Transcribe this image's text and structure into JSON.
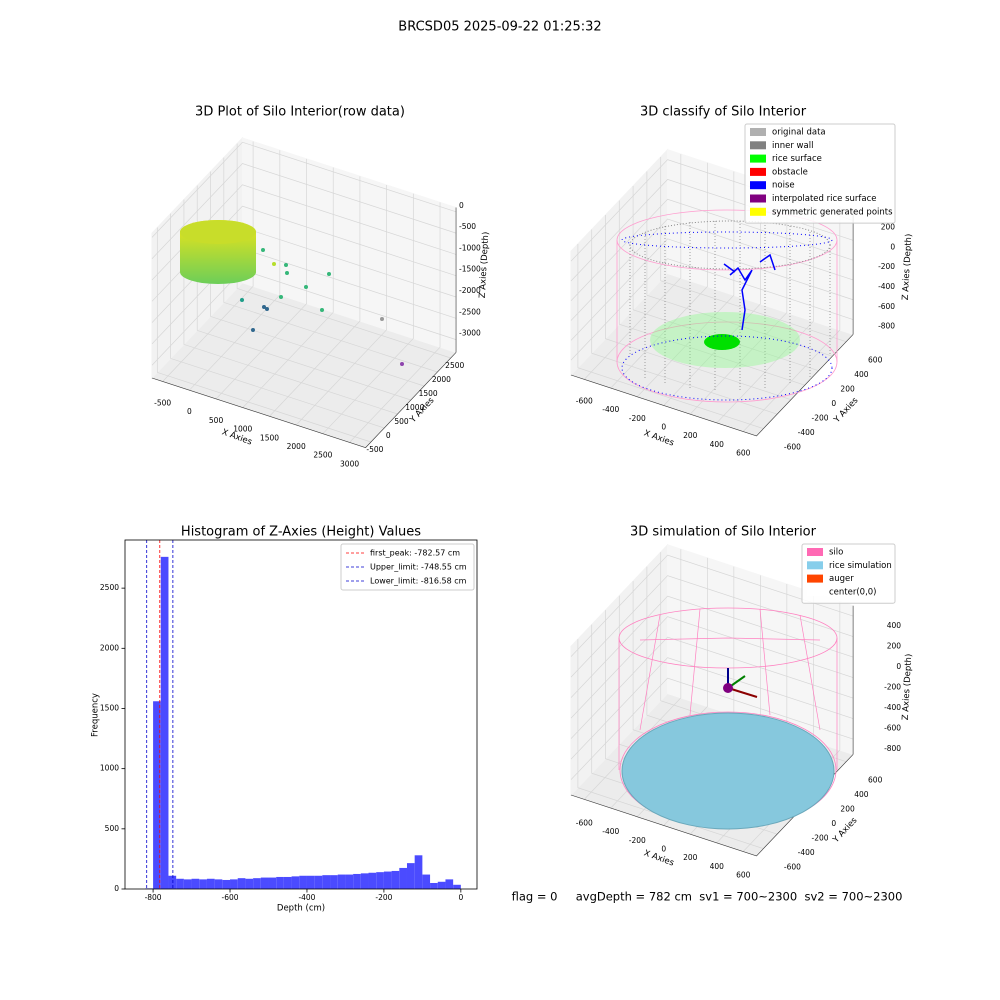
{
  "title": "BRCSD05 2025-09-22 01:25:32",
  "footer": "flag = 0     avgDepth = 782 cm  sv1 = 700~2300  sv2 = 700~2300",
  "chart_data": [
    {
      "type": "scatter3d",
      "title": "3D Plot of Silo Interior(row data)",
      "xlabel": "X Axies",
      "ylabel": "Y Axies",
      "zlabel": "Z Axies (Depth)",
      "xlim": [
        -700,
        3300
      ],
      "ylim": [
        -700,
        2700
      ],
      "zlim": [
        -3300,
        100
      ],
      "xticks": [
        -500,
        0,
        500,
        1000,
        1500,
        2000,
        2500,
        3000
      ],
      "yticks": [
        -500,
        0,
        500,
        1000,
        1500,
        2000,
        2500
      ],
      "zticks": [
        -3000,
        -2500,
        -2000,
        -1500,
        -1000,
        -500,
        0
      ],
      "grid": true
    },
    {
      "type": "scatter3d",
      "title": "3D classify of Silo Interior",
      "xlabel": "X Axies",
      "ylabel": "Y Axies",
      "zlabel": "Z Axies (Depth)",
      "xlim": [
        -700,
        700
      ],
      "ylim": [
        -700,
        700
      ],
      "zlim": [
        -950,
        300
      ],
      "xticks": [
        -600,
        -400,
        -200,
        0,
        200,
        400,
        600
      ],
      "yticks": [
        -600,
        -400,
        -200,
        0,
        200,
        400,
        600
      ],
      "zticks": [
        -800,
        -600,
        -400,
        -200,
        0,
        200
      ],
      "grid": true,
      "legend": "upper right",
      "series": [
        {
          "name": "original data",
          "color": "#b0b0b0"
        },
        {
          "name": "inner wall",
          "color": "#808080"
        },
        {
          "name": "rice surface",
          "color": "#00ff00"
        },
        {
          "name": "obstacle",
          "color": "#ff0000"
        },
        {
          "name": "noise",
          "color": "#0000ff"
        },
        {
          "name": "interpolated rice surface",
          "color": "#800080"
        },
        {
          "name": "symmetric generated points",
          "color": "#ffff00"
        }
      ]
    },
    {
      "type": "histogram",
      "title": "Histogram of Z-Axies (Height) Values",
      "xlabel": "Depth (cm)",
      "ylabel": "Frequency",
      "color": "#4b4bff",
      "bins": [
        -820,
        -800,
        -780,
        -760,
        -740,
        -720,
        -700,
        -680,
        -660,
        -640,
        -620,
        -600,
        -580,
        -560,
        -540,
        -520,
        -500,
        -480,
        -460,
        -440,
        -420,
        -400,
        -380,
        -360,
        -340,
        -320,
        -300,
        -280,
        -260,
        -240,
        -220,
        -200,
        -180,
        -160,
        -140,
        -120,
        -100,
        -80,
        -60,
        -40,
        -20,
        0
      ],
      "counts": [
        5,
        1560,
        2760,
        110,
        85,
        80,
        85,
        80,
        85,
        80,
        75,
        80,
        90,
        85,
        90,
        95,
        95,
        100,
        100,
        105,
        110,
        110,
        110,
        115,
        115,
        120,
        120,
        125,
        130,
        135,
        140,
        145,
        150,
        175,
        215,
        280,
        120,
        50,
        60,
        80,
        35
      ],
      "xlim": [
        -873,
        42
      ],
      "ylim": [
        0,
        2900
      ],
      "xticks": [
        -800,
        -600,
        -400,
        -200,
        0
      ],
      "yticks": [
        0,
        500,
        1000,
        1500,
        2000,
        2500
      ],
      "legend": "upper right",
      "lines": [
        {
          "label": "first_peak: -782.57 cm",
          "value": -782.57,
          "color": "#ff0000"
        },
        {
          "label": "Upper_limit: -748.55 cm",
          "value": -748.55,
          "color": "#0000cc"
        },
        {
          "label": "Lower_limit: -816.58 cm",
          "value": -816.58,
          "color": "#0000cc"
        }
      ]
    },
    {
      "type": "scatter3d",
      "title": "3D simulation of Silo Interior",
      "xlabel": "X Axies",
      "ylabel": "Y Axies",
      "zlabel": "Z Axies (Depth)",
      "xlim": [
        -700,
        700
      ],
      "ylim": [
        -700,
        700
      ],
      "zlim": [
        -950,
        500
      ],
      "xticks": [
        -600,
        -400,
        -200,
        0,
        200,
        400,
        600
      ],
      "yticks": [
        -600,
        -400,
        -200,
        0,
        200,
        400,
        600
      ],
      "zticks": [
        -800,
        -600,
        -400,
        -200,
        0,
        200,
        400
      ],
      "grid": true,
      "legend": "upper right",
      "series": [
        {
          "name": "silo",
          "color": "#ff69b4"
        },
        {
          "name": "rice simulation",
          "color": "#87ceeb"
        },
        {
          "name": "auger",
          "color": "#ff4500"
        },
        {
          "name": "center(0,0)",
          "color": "#ffffff"
        }
      ]
    }
  ]
}
